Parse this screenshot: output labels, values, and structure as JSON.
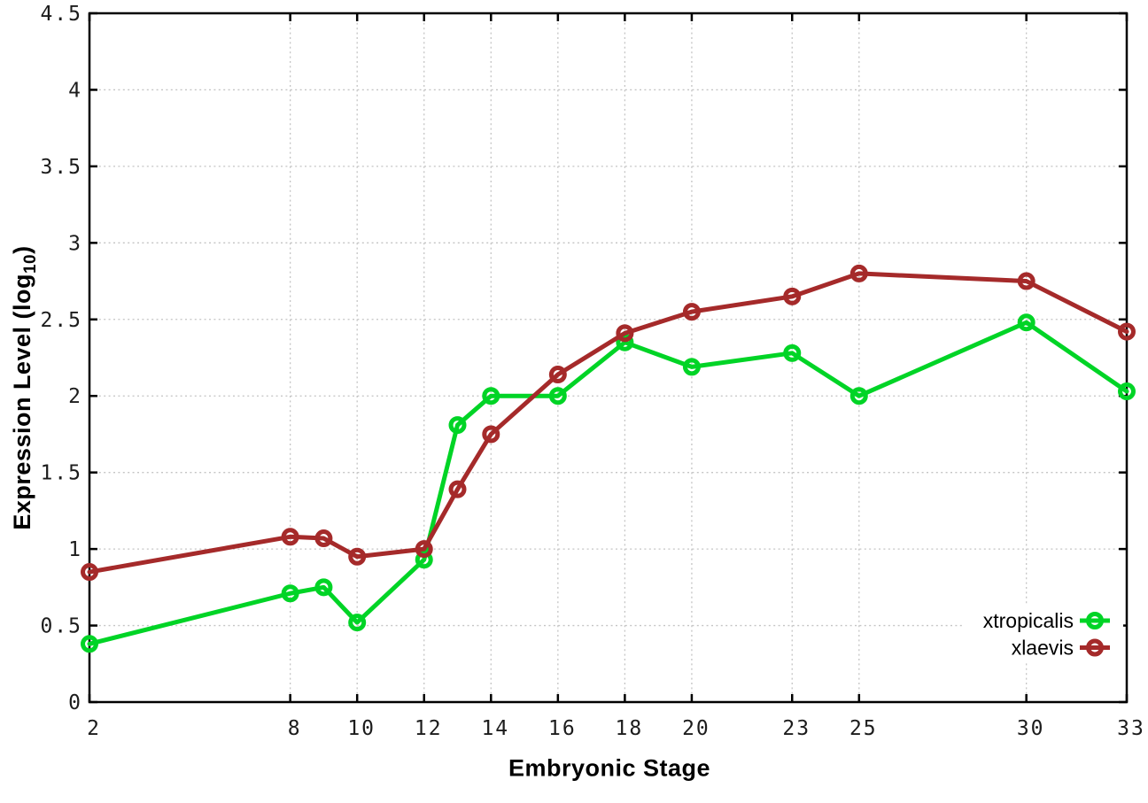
{
  "page_bg": "#ffffff",
  "chart_data": {
    "type": "line",
    "title": "",
    "xlabel": "Embryonic Stage",
    "ylabel": "Expression Level (log10)",
    "ylabel_parts": {
      "prefix": "Expression Level (log",
      "subscript": "10",
      "suffix": ")"
    },
    "x": [
      2,
      8,
      9,
      10,
      12,
      13,
      14,
      16,
      18,
      20,
      23,
      25,
      30,
      33
    ],
    "xtick_labels": [
      "2",
      "8",
      "10",
      "12",
      "14",
      "16",
      "18",
      "20",
      "23",
      "25",
      "30",
      "33"
    ],
    "xtick_values": [
      2,
      8,
      10,
      12,
      14,
      16,
      18,
      20,
      23,
      25,
      30,
      33
    ],
    "xlim": [
      2,
      33
    ],
    "ylim": [
      0,
      4.5
    ],
    "ytick_values": [
      0,
      0.5,
      1,
      1.5,
      2,
      2.5,
      3,
      3.5,
      4,
      4.5
    ],
    "ytick_labels": [
      "0",
      "0.5",
      "1",
      "1.5",
      "2",
      "2.5",
      "3",
      "3.5",
      "4",
      "4.5"
    ],
    "grid": true,
    "legend_position": "bottom-right",
    "series": [
      {
        "name": "xtropicalis",
        "color": "#00d426",
        "marker": "open-circle",
        "values": [
          0.38,
          0.71,
          0.75,
          0.52,
          0.93,
          1.81,
          2.0,
          2.0,
          2.35,
          2.19,
          2.28,
          2.0,
          2.48,
          2.03
        ]
      },
      {
        "name": "xlaevis",
        "color": "#a52a2a",
        "marker": "open-circle",
        "values": [
          0.85,
          1.08,
          1.07,
          0.95,
          1.0,
          1.39,
          1.75,
          2.14,
          2.41,
          2.55,
          2.65,
          2.8,
          2.75,
          2.42
        ]
      }
    ],
    "style": {
      "grid_color": "#c4c4c4",
      "axis_color": "#000000",
      "tick_label_color": "#1c1c1c",
      "line_width": 5,
      "marker_radius": 7.5,
      "marker_stroke": 5
    }
  }
}
